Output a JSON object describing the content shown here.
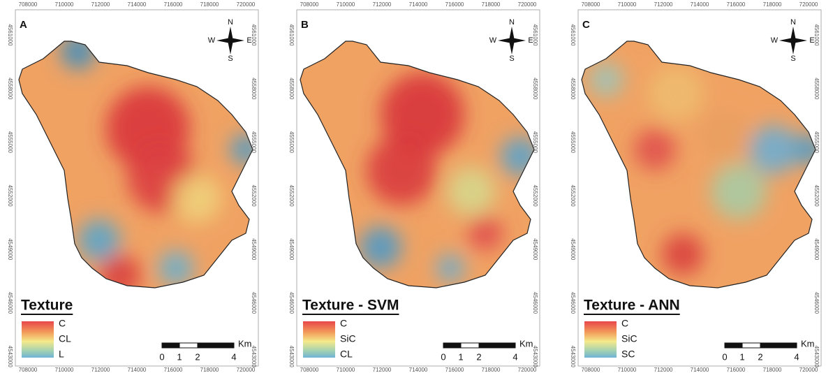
{
  "x_ticks": [
    708000,
    710000,
    712000,
    714000,
    716000,
    718000,
    720000
  ],
  "y_ticks": [
    4561000,
    4558000,
    4555000,
    4552000,
    4549000,
    4546000,
    4543000
  ],
  "compass": {
    "north": "N",
    "west": "W",
    "east": "E",
    "south": "S"
  },
  "scale_bar": {
    "labels": [
      0,
      1,
      2,
      4
    ],
    "unit": "Km"
  },
  "panels": [
    {
      "letter": "A",
      "legend_title": "Texture",
      "legend_labels": [
        "C",
        "CL",
        "L"
      ]
    },
    {
      "letter": "B",
      "legend_title": "Texture - SVM",
      "legend_labels": [
        "C",
        "SiC",
        "CL"
      ]
    },
    {
      "letter": "C",
      "legend_title": "Texture - ANN",
      "legend_labels": [
        "C",
        "SiC",
        "SC"
      ]
    }
  ]
}
